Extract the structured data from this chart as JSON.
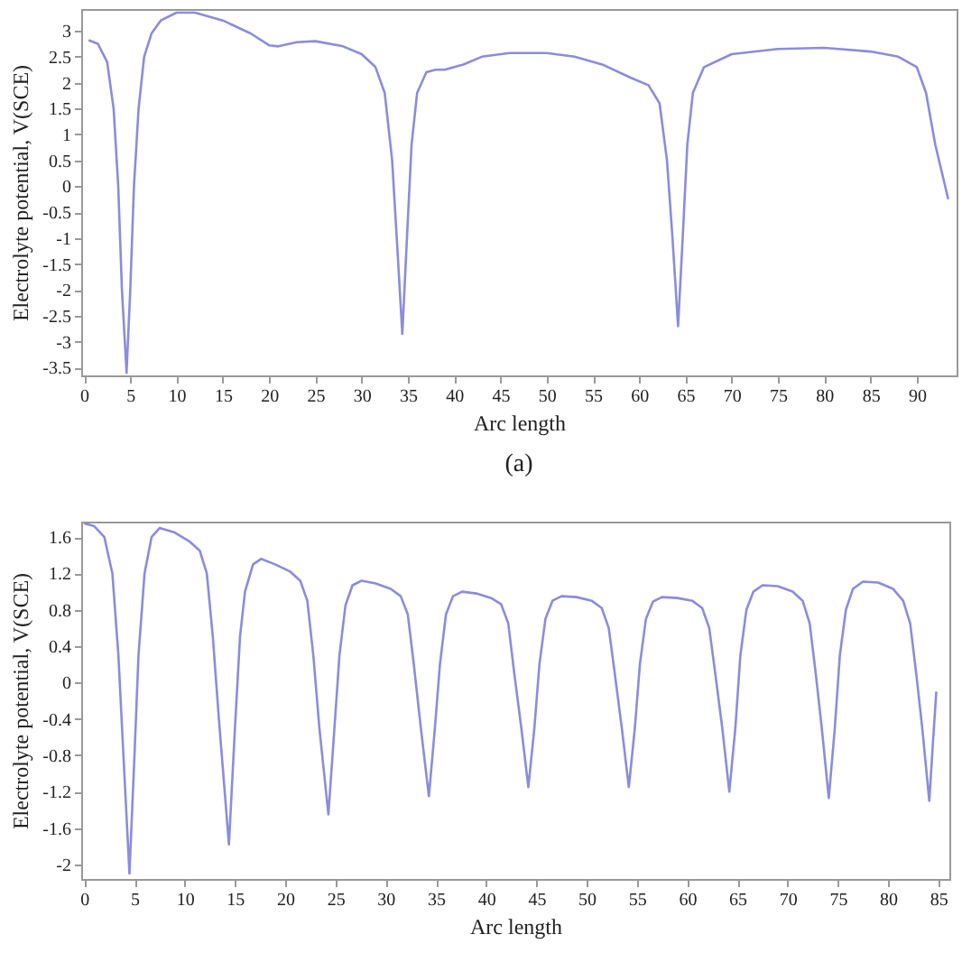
{
  "chart_data": [
    {
      "type": "line",
      "xlabel": "Arc length",
      "ylabel": "Electrolyte potential, V(SCE)",
      "annotations": [
        "(a)"
      ],
      "xlim": [
        -0.3,
        94.3
      ],
      "ylim": [
        -3.65,
        3.42
      ],
      "xticks": [
        0,
        5,
        10,
        15,
        20,
        25,
        30,
        35,
        40,
        45,
        50,
        55,
        60,
        65,
        70,
        75,
        80,
        85,
        90
      ],
      "yticks": [
        -3.5,
        -3,
        -2.5,
        -2,
        -1.5,
        -1,
        -0.5,
        0,
        0.5,
        1,
        1.5,
        2,
        2.5,
        3
      ],
      "grid": false,
      "line_style": "solid",
      "series": [
        {
          "color": "#8c8cdc",
          "x": [
            0.5,
            1.5,
            2.5,
            3.2,
            3.7,
            4.1,
            4.6,
            5.0,
            5.4,
            5.9,
            6.5,
            7.3,
            8.3,
            10,
            12,
            15,
            18,
            20,
            21,
            23,
            25,
            28,
            30,
            31.5,
            32.5,
            33.3,
            33.8,
            34.4,
            34.9,
            35.4,
            36,
            37,
            38,
            39,
            41,
            43,
            46,
            50,
            53,
            56,
            59,
            61,
            62.2,
            63,
            63.6,
            64.2,
            64.7,
            65.2,
            65.8,
            67,
            70,
            75,
            80,
            85,
            88,
            90,
            91,
            92,
            93.4
          ],
          "values": [
            2.82,
            2.75,
            2.4,
            1.5,
            0,
            -2,
            -3.6,
            -2,
            0,
            1.5,
            2.5,
            2.95,
            3.2,
            3.35,
            3.35,
            3.2,
            2.95,
            2.72,
            2.7,
            2.78,
            2.8,
            2.7,
            2.55,
            2.3,
            1.8,
            0.5,
            -1,
            -2.85,
            -1,
            0.8,
            1.8,
            2.2,
            2.25,
            2.25,
            2.35,
            2.5,
            2.57,
            2.57,
            2.5,
            2.35,
            2.1,
            1.95,
            1.6,
            0.5,
            -1,
            -2.7,
            -1,
            0.8,
            1.8,
            2.3,
            2.55,
            2.65,
            2.67,
            2.6,
            2.5,
            2.3,
            1.8,
            0.8,
            -0.25
          ]
        }
      ]
    },
    {
      "type": "line",
      "xlabel": "Arc length",
      "ylabel": "Electrolyte potential, V(SCE)",
      "xlim": [
        -0.3,
        86.1
      ],
      "ylim": [
        -2.16,
        1.77
      ],
      "xticks": [
        0,
        5,
        10,
        15,
        20,
        25,
        30,
        35,
        40,
        45,
        50,
        55,
        60,
        65,
        70,
        75,
        80,
        85
      ],
      "yticks": [
        -2,
        -1.6,
        -1.2,
        -0.8,
        -0.4,
        0,
        0.4,
        0.8,
        1.2,
        1.6
      ],
      "grid": false,
      "line_style": "solid",
      "series": [
        {
          "color": "#8c8cdc",
          "x": [
            0,
            1,
            2,
            2.8,
            3.4,
            3.9,
            4.5,
            5,
            5.4,
            6,
            6.7,
            7.5,
            9,
            10.5,
            11.5,
            12.2,
            12.8,
            13.4,
            14.4,
            15,
            15.5,
            16,
            16.8,
            17.6,
            19,
            20.5,
            21.5,
            22.2,
            22.8,
            23.4,
            24.3,
            24.9,
            25.4,
            26,
            26.7,
            27.6,
            29,
            30.5,
            31.5,
            32.2,
            32.8,
            33.5,
            34.3,
            34.9,
            35.4,
            36,
            36.7,
            37.6,
            39,
            40.5,
            41.5,
            42.2,
            42.8,
            43.5,
            44.2,
            44.8,
            45.3,
            45.9,
            46.6,
            47.5,
            49,
            50.5,
            51.5,
            52.2,
            52.8,
            53.5,
            54.2,
            54.8,
            55.3,
            55.9,
            56.6,
            57.5,
            59,
            60.5,
            61.5,
            62.2,
            62.8,
            63.5,
            64.2,
            64.8,
            65.3,
            65.9,
            66.6,
            67.5,
            69,
            70.5,
            71.5,
            72.2,
            72.8,
            73.4,
            74.1,
            74.7,
            75.2,
            75.8,
            76.5,
            77.5,
            79,
            80.5,
            81.5,
            82.2,
            82.8,
            83.4,
            84.1,
            84.5,
            84.8
          ],
          "values": [
            1.75,
            1.72,
            1.6,
            1.2,
            0.3,
            -0.8,
            -2.1,
            -0.8,
            0.3,
            1.2,
            1.6,
            1.7,
            1.65,
            1.55,
            1.45,
            1.2,
            0.5,
            -0.4,
            -1.78,
            -0.5,
            0.5,
            1.0,
            1.3,
            1.36,
            1.3,
            1.22,
            1.12,
            0.9,
            0.3,
            -0.5,
            -1.45,
            -0.5,
            0.3,
            0.85,
            1.07,
            1.12,
            1.09,
            1.03,
            0.95,
            0.75,
            0.2,
            -0.5,
            -1.25,
            -0.5,
            0.2,
            0.75,
            0.95,
            1.0,
            0.98,
            0.93,
            0.86,
            0.65,
            0.1,
            -0.5,
            -1.15,
            -0.5,
            0.2,
            0.7,
            0.9,
            0.95,
            0.94,
            0.9,
            0.82,
            0.6,
            0.1,
            -0.5,
            -1.15,
            -0.5,
            0.2,
            0.7,
            0.89,
            0.94,
            0.93,
            0.9,
            0.82,
            0.6,
            0.1,
            -0.5,
            -1.2,
            -0.5,
            0.3,
            0.8,
            1.0,
            1.07,
            1.06,
            1.0,
            0.9,
            0.65,
            0.1,
            -0.5,
            -1.27,
            -0.5,
            0.3,
            0.8,
            1.03,
            1.11,
            1.1,
            1.03,
            0.9,
            0.65,
            0.1,
            -0.5,
            -1.3,
            -0.6,
            -0.1
          ]
        }
      ]
    }
  ]
}
